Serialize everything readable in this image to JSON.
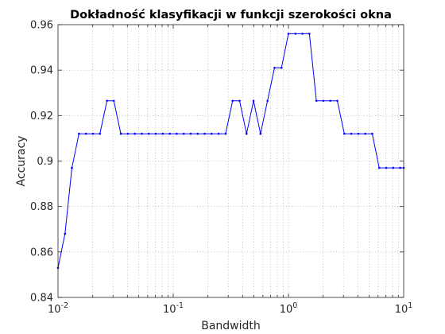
{
  "chart_data": {
    "type": "line",
    "title": "Dokładność klasyfikacji w funkcji szerokości okna",
    "xlabel": "Bandwidth",
    "ylabel": "Accuracy",
    "xscale": "log",
    "xlim": [
      0.01,
      10
    ],
    "ylim": [
      0.84,
      0.96
    ],
    "x_ticks": [
      0.01,
      0.1,
      1,
      10
    ],
    "x_tick_labels": [
      {
        "base": "10",
        "exp": "-2"
      },
      {
        "base": "10",
        "exp": "-1"
      },
      {
        "base": "10",
        "exp": "0"
      },
      {
        "base": "10",
        "exp": "1"
      }
    ],
    "y_ticks": [
      0.84,
      0.86,
      0.88,
      0.9,
      0.92,
      0.94,
      0.96
    ],
    "y_tick_labels": [
      "0.84",
      "0.86",
      "0.88",
      "0.9",
      "0.92",
      "0.94",
      "0.96"
    ],
    "grid": "dotted, major and minor on x, major on y",
    "color": "#0000ff",
    "series": [
      {
        "x": [
          0.01,
          0.0115,
          0.0132,
          0.0152,
          0.0175,
          0.0201,
          0.0231,
          0.0266,
          0.0305,
          0.0351,
          0.0404,
          0.0464,
          0.0534,
          0.0614,
          0.0705,
          0.0811,
          0.0933,
          0.1072,
          0.1233,
          0.1417,
          0.163,
          0.1874,
          0.2154,
          0.2477,
          0.2848,
          0.3275,
          0.3765,
          0.4329,
          0.4977,
          0.5722,
          0.6579,
          0.7565,
          0.8697,
          1.0,
          1.1498,
          1.3219,
          1.5199,
          1.7475,
          2.0092,
          2.3101,
          2.6561,
          3.0539,
          3.5112,
          4.037,
          4.6416,
          5.3367,
          6.1359,
          7.0548,
          8.1113,
          9.326,
          10.0
        ],
        "y": [
          0.853,
          0.868,
          0.897,
          0.912,
          0.912,
          0.912,
          0.912,
          0.9265,
          0.9265,
          0.912,
          0.912,
          0.912,
          0.912,
          0.912,
          0.912,
          0.912,
          0.912,
          0.912,
          0.912,
          0.912,
          0.912,
          0.912,
          0.912,
          0.912,
          0.912,
          0.9265,
          0.9265,
          0.912,
          0.9265,
          0.912,
          0.9265,
          0.941,
          0.941,
          0.956,
          0.956,
          0.956,
          0.956,
          0.9265,
          0.9265,
          0.9265,
          0.9265,
          0.912,
          0.912,
          0.912,
          0.912,
          0.912,
          0.897,
          0.897,
          0.897,
          0.897,
          0.897
        ]
      }
    ]
  }
}
